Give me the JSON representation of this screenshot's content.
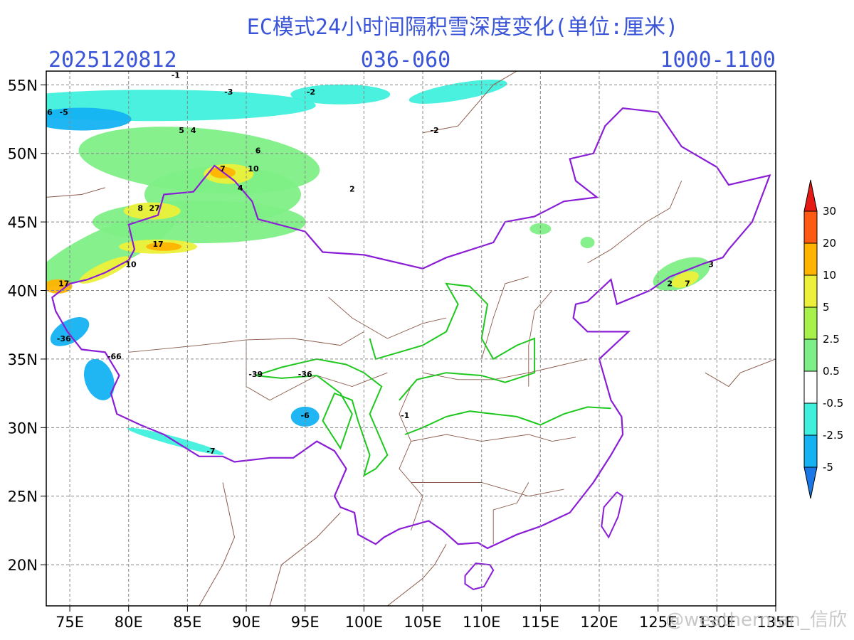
{
  "header": {
    "title": "EC模式24小时间隔积雪深度变化(单位:厘米)",
    "init_time": "2025120812",
    "forecast_hours": "036-060",
    "level": "1000-1100"
  },
  "map": {
    "lon_range": [
      73,
      135
    ],
    "lat_range": [
      17,
      56
    ],
    "lon_ticks": [
      {
        "value": 75,
        "label": "75E"
      },
      {
        "value": 80,
        "label": "80E"
      },
      {
        "value": 85,
        "label": "85E"
      },
      {
        "value": 90,
        "label": "90E"
      },
      {
        "value": 95,
        "label": "95E"
      },
      {
        "value": 100,
        "label": "100E"
      },
      {
        "value": 105,
        "label": "105E"
      },
      {
        "value": 110,
        "label": "110E"
      },
      {
        "value": 115,
        "label": "115E"
      },
      {
        "value": 120,
        "label": "120E"
      },
      {
        "value": 125,
        "label": "125E"
      },
      {
        "value": 130,
        "label": "130E"
      },
      {
        "value": 135,
        "label": "135E"
      }
    ],
    "lat_ticks": [
      {
        "value": 20,
        "label": "20N"
      },
      {
        "value": 25,
        "label": "25N"
      },
      {
        "value": 30,
        "label": "30N"
      },
      {
        "value": 35,
        "label": "35N"
      },
      {
        "value": 40,
        "label": "40N"
      },
      {
        "value": 45,
        "label": "45N"
      },
      {
        "value": 50,
        "label": "50N"
      },
      {
        "value": 55,
        "label": "55N"
      }
    ],
    "annotations": [
      {
        "text": "-1",
        "lon": 84,
        "lat": 55.5
      },
      {
        "text": "-3",
        "lon": 88.5,
        "lat": 54.3
      },
      {
        "text": "-2",
        "lon": 95.5,
        "lat": 54.3
      },
      {
        "text": "6",
        "lon": 73.3,
        "lat": 52.8
      },
      {
        "text": "-5",
        "lon": 74.5,
        "lat": 52.8
      },
      {
        "text": "-2",
        "lon": 106,
        "lat": 51.5
      },
      {
        "text": "5",
        "lon": 84.5,
        "lat": 51.5
      },
      {
        "text": "4",
        "lon": 85.5,
        "lat": 51.5
      },
      {
        "text": "6",
        "lon": 91,
        "lat": 50
      },
      {
        "text": "7",
        "lon": 88,
        "lat": 48.7
      },
      {
        "text": "10",
        "lon": 90.6,
        "lat": 48.7
      },
      {
        "text": "4",
        "lon": 89.5,
        "lat": 47.3
      },
      {
        "text": "8",
        "lon": 81,
        "lat": 45.8
      },
      {
        "text": "27",
        "lon": 82.2,
        "lat": 45.8
      },
      {
        "text": "17",
        "lon": 82.5,
        "lat": 43.2
      },
      {
        "text": "10",
        "lon": 80.2,
        "lat": 41.7
      },
      {
        "text": "17",
        "lon": 74.5,
        "lat": 40.3
      },
      {
        "text": "-36",
        "lon": 74.5,
        "lat": 36.3
      },
      {
        "text": "-66",
        "lon": 78.8,
        "lat": 35
      },
      {
        "text": "-39",
        "lon": 90.8,
        "lat": 33.7
      },
      {
        "text": "-36",
        "lon": 95,
        "lat": 33.7
      },
      {
        "text": "-6",
        "lon": 95,
        "lat": 30.7
      },
      {
        "text": "-1",
        "lon": 103.5,
        "lat": 30.7
      },
      {
        "text": "-7",
        "lon": 87,
        "lat": 28.1
      },
      {
        "text": "2",
        "lon": 126,
        "lat": 40.3
      },
      {
        "text": "7",
        "lon": 127.5,
        "lat": 40.3
      },
      {
        "text": "3",
        "lon": 129.5,
        "lat": 41.7
      },
      {
        "text": "2",
        "lon": 99,
        "lat": 47.2
      }
    ]
  },
  "colorbar": {
    "levels": [
      -5,
      -2.5,
      -0.5,
      0.5,
      2.5,
      5,
      10,
      20,
      30
    ],
    "colors": [
      "#1a78e6",
      "#14b2f2",
      "#3ff0dc",
      "#ffffff",
      "#7eef86",
      "#a8f04a",
      "#ecf03a",
      "#ffb400",
      "#ff5a14",
      "#e61a14"
    ]
  },
  "watermark": "@weatherman_信欣"
}
